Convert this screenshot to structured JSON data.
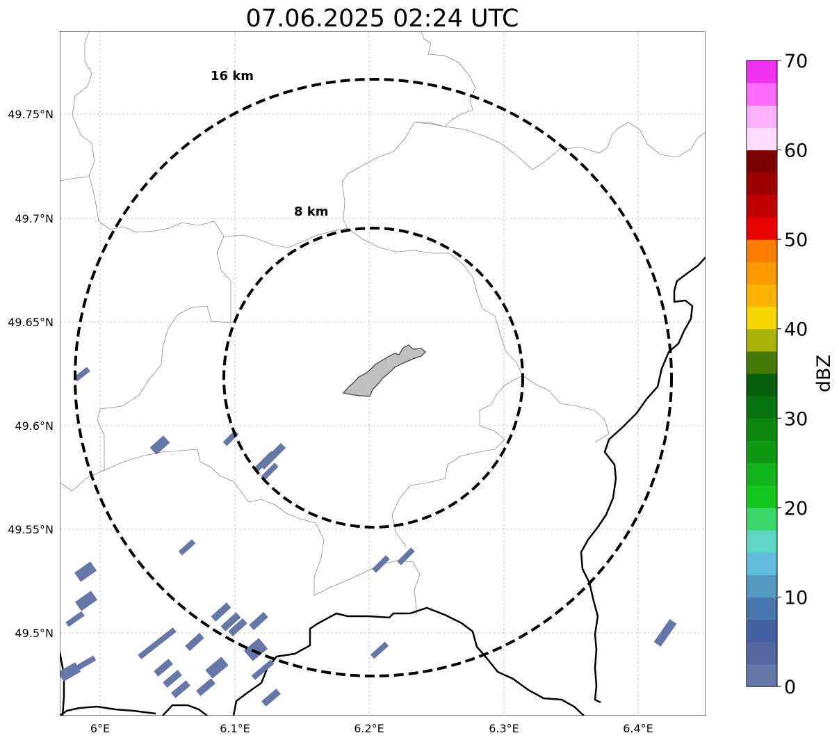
{
  "title": "07.06.2025 02:24 UTC",
  "axes": {
    "lon_ticks": [
      "6°E",
      "6.1°E",
      "6.2°E",
      "6.3°E",
      "6.4°E"
    ],
    "lat_ticks": [
      "49.75°N",
      "49.7°N",
      "49.65°N",
      "49.6°N",
      "49.55°N",
      "49.5°N"
    ]
  },
  "rings": [
    {
      "label": "16 km",
      "radius_km": 16
    },
    {
      "label": "8 km",
      "radius_km": 8
    }
  ],
  "colorbar": {
    "label": "dBZ",
    "ticks": [
      "0",
      "10",
      "20",
      "30",
      "40",
      "50",
      "60",
      "70"
    ],
    "colors": [
      "#6577a6",
      "#5566a0",
      "#4460a2",
      "#4878ae",
      "#5598c2",
      "#62bedc",
      "#5fd6c4",
      "#3dd66c",
      "#14c81e",
      "#10b41a",
      "#109a14",
      "#0c880e",
      "#087410",
      "#065e0c",
      "#467a06",
      "#aab208",
      "#f8d600",
      "#fcb400",
      "#fc9800",
      "#fc7c00",
      "#e80000",
      "#c00000",
      "#9e0000",
      "#7c0000",
      "#ffdcff",
      "#ffb0ff",
      "#ff6cff",
      "#f032f0"
    ]
  },
  "colors": {
    "echo": "#6577a6",
    "urban": "#c0c0c0",
    "border": "#000000",
    "commune": "#8c8c8c",
    "grid": "#b8b8b8"
  }
}
